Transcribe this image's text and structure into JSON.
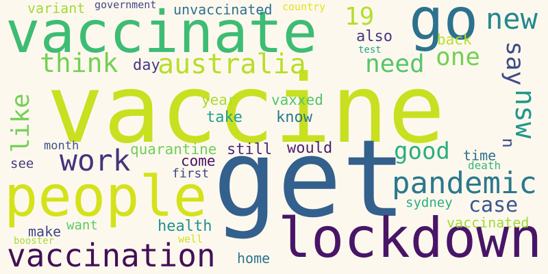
{
  "words": [
    {
      "text": "vaccine",
      "color": "#c8e020"
    },
    {
      "text": "get",
      "color": "#33608d"
    },
    {
      "text": "vaccinate",
      "color": "#3dbc74"
    },
    {
      "text": "lockdown",
      "color": "#481567"
    },
    {
      "text": "people",
      "color": "#d4e21a"
    },
    {
      "text": "go",
      "color": "#2c728e"
    },
    {
      "text": "vaccination",
      "color": "#440f56"
    },
    {
      "text": "pandemic",
      "color": "#2a788e"
    },
    {
      "text": "australia",
      "color": "#b8de29"
    },
    {
      "text": "work",
      "color": "#46337e"
    },
    {
      "text": "new",
      "color": "#23898e"
    },
    {
      "text": "think",
      "color": "#73d055"
    },
    {
      "text": "need",
      "color": "#55c667"
    },
    {
      "text": "one",
      "color": "#73d055"
    },
    {
      "text": "19",
      "color": "#b5de2b"
    },
    {
      "text": "say",
      "color": "#3e4c8a"
    },
    {
      "text": "nsw",
      "color": "#1f978b"
    },
    {
      "text": "like",
      "color": "#73d055"
    },
    {
      "text": "good",
      "color": "#29af7f"
    },
    {
      "text": "case",
      "color": "#39568c"
    },
    {
      "text": "variant",
      "color": "#a2da37"
    },
    {
      "text": "government",
      "color": "#3f4788"
    },
    {
      "text": "unvaccinated",
      "color": "#2d708e"
    },
    {
      "text": "country",
      "color": "#e0e318"
    },
    {
      "text": "also",
      "color": "#453882"
    },
    {
      "text": "back",
      "color": "#b8de29"
    },
    {
      "text": "test",
      "color": "#20a486"
    },
    {
      "text": "day",
      "color": "#443a83"
    },
    {
      "text": "year",
      "color": "#a8db34"
    },
    {
      "text": "vaxxed",
      "color": "#52c569"
    },
    {
      "text": "take",
      "color": "#1f9e89"
    },
    {
      "text": "know",
      "color": "#2a788e"
    },
    {
      "text": "month",
      "color": "#3b528b"
    },
    {
      "text": "quarantine",
      "color": "#6ece58"
    },
    {
      "text": "still",
      "color": "#482878"
    },
    {
      "text": "would",
      "color": "#481f70"
    },
    {
      "text": "time",
      "color": "#2d708e"
    },
    {
      "text": "u",
      "color": "#3b528b"
    },
    {
      "text": "see",
      "color": "#453882"
    },
    {
      "text": "come",
      "color": "#471063"
    },
    {
      "text": "death",
      "color": "#35b779"
    },
    {
      "text": "first",
      "color": "#3f4788"
    },
    {
      "text": "sydney",
      "color": "#29af7f"
    },
    {
      "text": "make",
      "color": "#414487"
    },
    {
      "text": "want",
      "color": "#5ec962"
    },
    {
      "text": "health",
      "color": "#21918c"
    },
    {
      "text": "vaccinated",
      "color": "#a0da39"
    },
    {
      "text": "booster",
      "color": "#a8db34"
    },
    {
      "text": "well",
      "color": "#d0e11c"
    },
    {
      "text": "home",
      "color": "#2c728e"
    }
  ]
}
